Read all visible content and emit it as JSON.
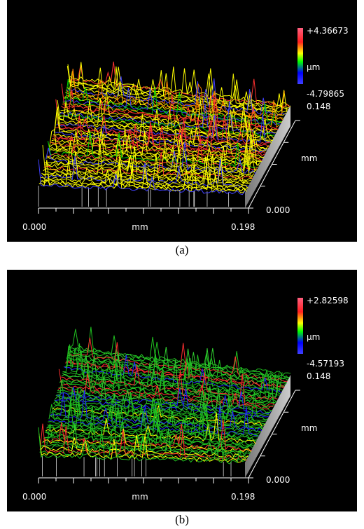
{
  "panels": [
    {
      "scale_max": "+4.36673",
      "scale_unit": "µm",
      "scale_min": "-4.79865",
      "y_max": "0.148",
      "y_unit": "mm",
      "y_min": "0.000",
      "x_min": "0.000",
      "x_unit": "mm",
      "x_max": "0.198",
      "caption": "(a)"
    },
    {
      "scale_max": "+2.82598",
      "scale_unit": "µm",
      "scale_min": "-4.57193",
      "y_max": "0.148",
      "y_unit": "mm",
      "y_min": "0.000",
      "x_min": "0.000",
      "x_unit": "mm",
      "x_max": "0.198",
      "caption": "(b)"
    }
  ]
}
